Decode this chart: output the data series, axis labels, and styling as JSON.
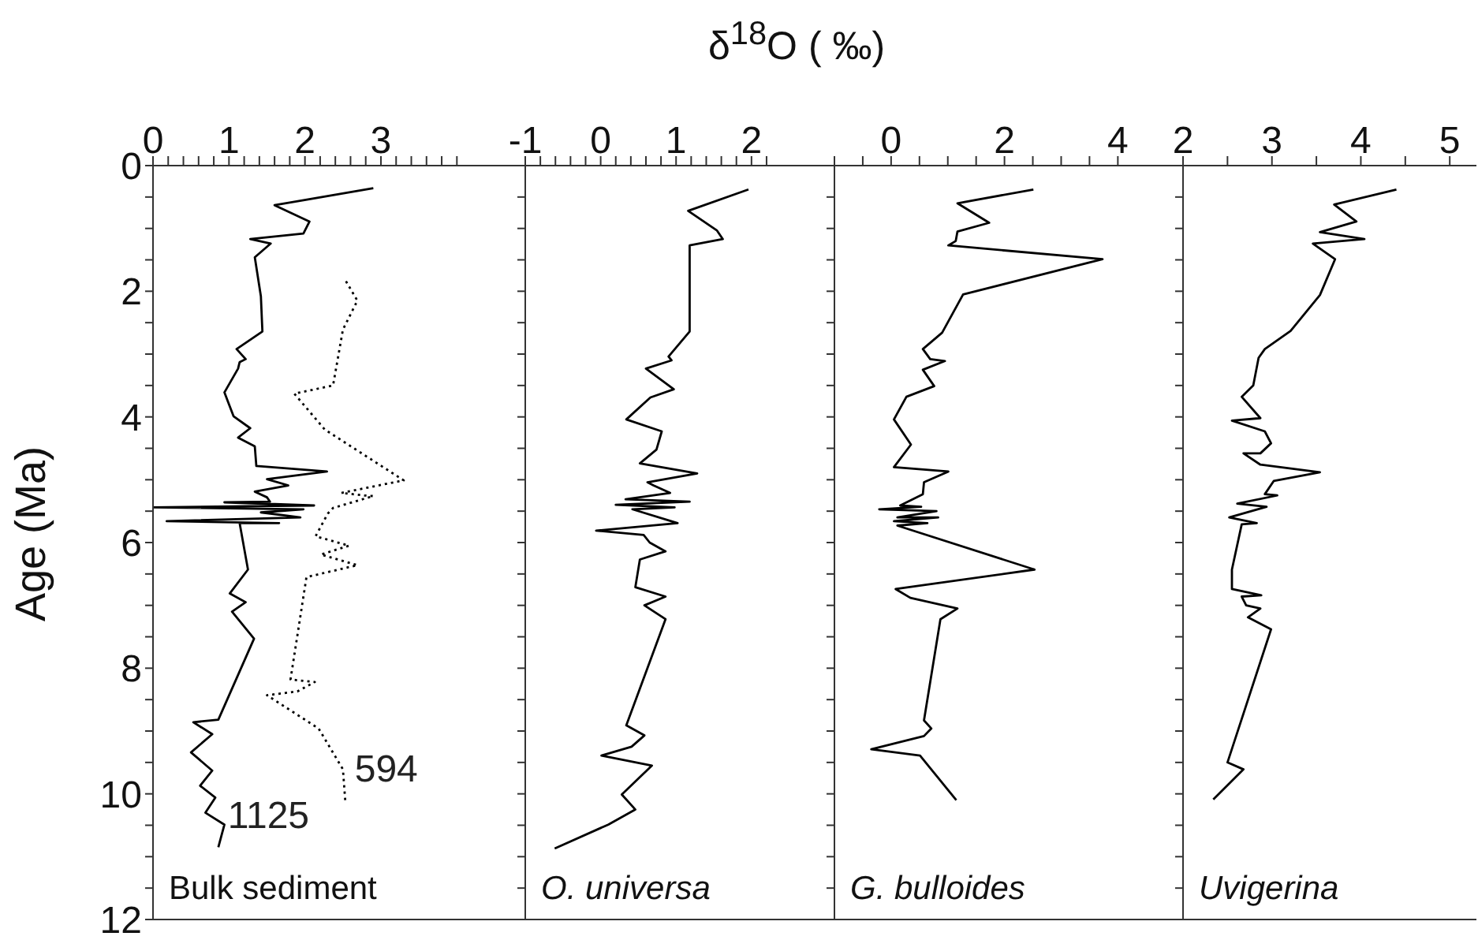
{
  "chart_data": [
    {
      "type": "line",
      "title": "Bulk sediment",
      "xlabel": "δ$^{18}$O ( ‰)",
      "ylabel": "Age (Ma)",
      "xlim": [
        0,
        4.9
      ],
      "xticks": [
        0,
        {
          "value": 0.2,
          "label": null
        },
        {
          "value": 0.4,
          "label": null
        },
        {
          "value": 0.6,
          "label": null
        },
        {
          "value": 0.8,
          "label": null
        },
        1,
        {
          "value": 1.2,
          "label": null
        },
        {
          "value": 1.4,
          "label": null
        },
        {
          "value": 1.6,
          "label": null
        },
        {
          "value": 1.8,
          "label": null
        },
        2,
        {
          "value": 2.2,
          "label": null
        },
        {
          "value": 2.4,
          "label": null
        },
        {
          "value": 2.6,
          "label": null
        },
        {
          "value": 2.8,
          "label": null
        },
        3,
        {
          "value": 3.2,
          "label": null
        },
        {
          "value": 3.4,
          "label": null
        },
        {
          "value": 3.6,
          "label": null
        },
        {
          "value": 3.8,
          "label": null
        },
        {
          "value": 4,
          "label": null
        }
      ],
      "ylim": [
        12,
        0
      ],
      "yticks": [
        0,
        {
          "value": 0.5,
          "label": null
        },
        {
          "value": 1,
          "label": null
        },
        {
          "value": 1.5,
          "label": null
        },
        2,
        {
          "value": 2.5,
          "label": null
        },
        {
          "value": 3,
          "label": null
        },
        {
          "value": 3.5,
          "label": null
        },
        4,
        {
          "value": 4.5,
          "label": null
        },
        {
          "value": 5,
          "label": null
        },
        {
          "value": 5.5,
          "label": null
        },
        6,
        {
          "value": 6.5,
          "label": null
        },
        {
          "value": 7,
          "label": null
        },
        {
          "value": 7.5,
          "label": null
        },
        8,
        {
          "value": 8.5,
          "label": null
        },
        {
          "value": 9,
          "label": null
        },
        {
          "value": 9.5,
          "label": null
        },
        10,
        {
          "value": 10.5,
          "label": null
        },
        {
          "value": 11,
          "label": null
        },
        {
          "value": 11.5,
          "label": null
        },
        12
      ],
      "series": [
        {
          "name": "1125",
          "color": "#000000",
          "line_style": "solid",
          "x": [
            2.9,
            1.6,
            2.06,
            1.98,
            1.28,
            1.55,
            1.34,
            1.42,
            1.44,
            1.1,
            1.22,
            1.14,
            1.12,
            0.94,
            1.06,
            1.28,
            1.12,
            1.34,
            1.36,
            2.29,
            1.5,
            1.78,
            1.34,
            1.5,
            1.54,
            0.94,
            2.12,
            0,
            1.98,
            1.42,
            1.94,
            0.18,
            1.66,
            1.14,
            1.25,
            1.01,
            1.22,
            1.04,
            1.33,
            0.86,
            0.53,
            0.78,
            0.5,
            0.78,
            0.62,
            0.82,
            0.69,
            0.94,
            0.86
          ],
          "values": [
            0.36,
            0.63,
            0.89,
            1.08,
            1.17,
            1.24,
            1.46,
            2.08,
            2.64,
            2.92,
            3.08,
            3.13,
            3.23,
            3.61,
            3.99,
            4.18,
            4.33,
            4.47,
            4.78,
            4.87,
            4.99,
            5.09,
            5.19,
            5.28,
            5.35,
            5.36,
            5.41,
            5.44,
            5.47,
            5.52,
            5.6,
            5.66,
            5.69,
            5.69,
            6.43,
            6.81,
            6.95,
            7.1,
            7.53,
            8.82,
            8.86,
            9.05,
            9.34,
            9.63,
            9.87,
            10.06,
            10.3,
            10.49,
            10.85
          ]
        },
        {
          "name": "594",
          "color": "#000000",
          "line_style": "dotted",
          "x": [
            2.54,
            2.69,
            2.5,
            2.37,
            1.86,
            2.26,
            3.3,
            2.48,
            2.78,
            2.9,
            2.37,
            2.3,
            2.14,
            2.58,
            2.21,
            2.69,
            2.02,
            1.81,
            2.13,
            1.9,
            1.5,
            2.18,
            2.5,
            2.53
          ],
          "values": [
            1.84,
            2.15,
            2.61,
            3.5,
            3.63,
            4.2,
            5.01,
            5.21,
            5.25,
            5.26,
            5.45,
            5.54,
            5.9,
            6.05,
            6.19,
            6.36,
            6.55,
            8.18,
            8.22,
            8.37,
            8.43,
            8.96,
            9.61,
            10.1
          ]
        }
      ]
    },
    {
      "type": "line",
      "title": "O. universa",
      "xlim": [
        -1,
        3.1
      ],
      "xticks": [
        -1,
        {
          "value": -0.8,
          "label": null
        },
        {
          "value": -0.6,
          "label": null
        },
        {
          "value": -0.4,
          "label": null
        },
        {
          "value": -0.2,
          "label": null
        },
        0,
        {
          "value": 0.2,
          "label": null
        },
        {
          "value": 0.4,
          "label": null
        },
        {
          "value": 0.6,
          "label": null
        },
        {
          "value": 0.8,
          "label": null
        },
        1,
        {
          "value": 1.2,
          "label": null
        },
        {
          "value": 1.4,
          "label": null
        },
        {
          "value": 1.6,
          "label": null
        },
        {
          "value": 1.8,
          "label": null
        },
        2,
        {
          "value": 2.2,
          "label": null
        }
      ],
      "ylim": [
        12,
        0
      ],
      "yticks": [
        0,
        {
          "value": 0.5,
          "label": null
        },
        {
          "value": 1,
          "label": null
        },
        {
          "value": 1.5,
          "label": null
        },
        2,
        {
          "value": 2.5,
          "label": null
        },
        {
          "value": 3,
          "label": null
        },
        {
          "value": 3.5,
          "label": null
        },
        4,
        {
          "value": 4.5,
          "label": null
        },
        {
          "value": 5,
          "label": null
        },
        {
          "value": 5.5,
          "label": null
        },
        6,
        {
          "value": 6.5,
          "label": null
        },
        {
          "value": 7,
          "label": null
        },
        {
          "value": 7.5,
          "label": null
        },
        8,
        {
          "value": 8.5,
          "label": null
        },
        {
          "value": 9,
          "label": null
        },
        {
          "value": 9.5,
          "label": null
        },
        10,
        {
          "value": 10.5,
          "label": null
        },
        {
          "value": 11,
          "label": null
        },
        {
          "value": 11.5,
          "label": null
        },
        12
      ],
      "tick_labels": "x",
      "series": [
        {
          "color": "#000000",
          "line_style": "solid",
          "x": [
            1.96,
            1.16,
            1.54,
            1.62,
            1.18,
            1.18,
            1.18,
            0.9,
            0.94,
            0.6,
            0.97,
            0.66,
            0.34,
            0.81,
            0.74,
            0.52,
            1.28,
            0.62,
            0.7,
            0.92,
            0.33,
            1.18,
            0.2,
            0.98,
            0.42,
            1.02,
            -0.06,
            0.57,
            0.65,
            0.86,
            0.52,
            0.46,
            0.86,
            0.58,
            0.86,
            0.34,
            0.58,
            0.41,
            0.01,
            0.68,
            0.28,
            0.46,
            0.1,
            -0.61
          ],
          "values": [
            0.38,
            0.72,
            1.03,
            1.17,
            1.27,
            1.56,
            2.64,
            3.04,
            3.1,
            3.23,
            3.56,
            3.69,
            4.04,
            4.23,
            4.52,
            4.74,
            4.9,
            5.04,
            5.09,
            5.21,
            5.31,
            5.35,
            5.4,
            5.44,
            5.47,
            5.69,
            5.81,
            5.88,
            6,
            6.14,
            6.27,
            6.71,
            6.86,
            7,
            7.22,
            8.91,
            9.07,
            9.25,
            9.39,
            9.55,
            10.01,
            10.25,
            10.49,
            10.87
          ]
        }
      ]
    },
    {
      "type": "line",
      "title": "G. bulloides",
      "xlim": [
        -1,
        5.15
      ],
      "xticks": [
        {
          "value": -1,
          "label": null
        },
        {
          "value": -0.5,
          "label": null
        },
        0,
        {
          "value": 0.5,
          "label": null
        },
        {
          "value": 1,
          "label": null
        },
        {
          "value": 1.5,
          "label": null
        },
        2,
        {
          "value": 2.5,
          "label": null
        },
        {
          "value": 3,
          "label": null
        },
        {
          "value": 3.5,
          "label": null
        },
        4
      ],
      "ylim": [
        12,
        0
      ],
      "yticks": [
        0,
        {
          "value": 0.5,
          "label": null
        },
        {
          "value": 1,
          "label": null
        },
        {
          "value": 1.5,
          "label": null
        },
        2,
        {
          "value": 2.5,
          "label": null
        },
        {
          "value": 3,
          "label": null
        },
        {
          "value": 3.5,
          "label": null
        },
        4,
        {
          "value": 4.5,
          "label": null
        },
        {
          "value": 5,
          "label": null
        },
        {
          "value": 5.5,
          "label": null
        },
        6,
        {
          "value": 6.5,
          "label": null
        },
        {
          "value": 7,
          "label": null
        },
        {
          "value": 7.5,
          "label": null
        },
        8,
        {
          "value": 8.5,
          "label": null
        },
        {
          "value": 9,
          "label": null
        },
        {
          "value": 9.5,
          "label": null
        },
        10,
        {
          "value": 10.5,
          "label": null
        },
        {
          "value": 11,
          "label": null
        },
        {
          "value": 11.5,
          "label": null
        },
        12
      ],
      "tick_labels": "x",
      "series": [
        {
          "color": "#000000",
          "line_style": "solid",
          "x": [
            2.51,
            1.17,
            1.73,
            1.17,
            1.14,
            1.01,
            3.73,
            1.27,
            0.9,
            0.56,
            0.69,
            0.95,
            0.56,
            0.76,
            0.27,
            0.05,
            0.35,
            0.05,
            1.01,
            0.58,
            0.56,
            0.16,
            0.53,
            -0.21,
            0.8,
            0.11,
            0.83,
            0.05,
            0.64,
            0.11,
            2.53,
            0.08,
            0.34,
            1.17,
            0.87,
            0.58,
            0.71,
            0.58,
            -0.35,
            0.51,
            1.15
          ],
          "values": [
            0.38,
            0.6,
            0.91,
            1.05,
            1.2,
            1.27,
            1.49,
            2.05,
            2.66,
            2.92,
            3.08,
            3.11,
            3.25,
            3.51,
            3.68,
            4.04,
            4.44,
            4.8,
            4.87,
            5.04,
            5.23,
            5.41,
            5.43,
            5.47,
            5.5,
            5.6,
            5.6,
            5.66,
            5.69,
            5.73,
            6.43,
            6.74,
            6.88,
            7.05,
            7.22,
            8.83,
            8.96,
            9.08,
            9.29,
            9.39,
            10.1
          ]
        }
      ]
    },
    {
      "type": "line",
      "title": "Uvigerina",
      "xlim": [
        2,
        5.3
      ],
      "xticks": [
        2,
        {
          "value": 2.5,
          "label": null
        },
        3,
        {
          "value": 3.5,
          "label": null
        },
        4,
        {
          "value": 4.5,
          "label": null
        },
        5
      ],
      "ylim": [
        12,
        0
      ],
      "yticks": [
        0,
        {
          "value": 0.5,
          "label": null
        },
        {
          "value": 1,
          "label": null
        },
        {
          "value": 1.5,
          "label": null
        },
        2,
        {
          "value": 2.5,
          "label": null
        },
        {
          "value": 3,
          "label": null
        },
        {
          "value": 3.5,
          "label": null
        },
        4,
        {
          "value": 4.5,
          "label": null
        },
        {
          "value": 5,
          "label": null
        },
        {
          "value": 5.5,
          "label": null
        },
        6,
        {
          "value": 6.5,
          "label": null
        },
        {
          "value": 7,
          "label": null
        },
        {
          "value": 7.5,
          "label": null
        },
        8,
        {
          "value": 8.5,
          "label": null
        },
        {
          "value": 9,
          "label": null
        },
        {
          "value": 9.5,
          "label": null
        },
        10,
        {
          "value": 10.5,
          "label": null
        },
        {
          "value": 11,
          "label": null
        },
        {
          "value": 11.5,
          "label": null
        },
        12
      ],
      "tick_labels": "x",
      "series": [
        {
          "color": "#000000",
          "line_style": "solid",
          "x": [
            4.4,
            3.7,
            3.95,
            3.54,
            4.04,
            3.46,
            3.71,
            3.54,
            3.21,
            2.92,
            2.85,
            2.79,
            2.66,
            2.87,
            2.55,
            2.92,
            2.99,
            2.87,
            2.68,
            2.87,
            3.54,
            3.02,
            2.92,
            3.06,
            2.61,
            2.94,
            2.52,
            2.83,
            2.66,
            2.55,
            2.55,
            2.88,
            2.66,
            2.71,
            2.87,
            2.73,
            2.99,
            2.5,
            2.68,
            2.34
          ],
          "values": [
            0.38,
            0.62,
            0.89,
            1.06,
            1.17,
            1.24,
            1.49,
            2.06,
            2.63,
            2.92,
            3.06,
            3.5,
            3.68,
            4.02,
            4.06,
            4.23,
            4.42,
            4.58,
            4.58,
            4.76,
            4.88,
            5.02,
            5.23,
            5.25,
            5.38,
            5.43,
            5.6,
            5.69,
            5.71,
            6.43,
            6.74,
            6.84,
            6.86,
            7,
            7.05,
            7.19,
            7.38,
            9.5,
            9.61,
            10.09
          ]
        }
      ]
    }
  ]
}
